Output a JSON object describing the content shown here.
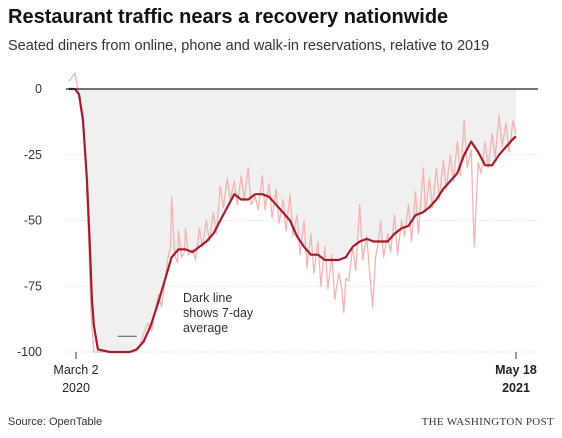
{
  "header": {
    "title": "Restaurant traffic nears a recovery nationwide",
    "subtitle": "Seated diners from online, phone and walk-in reservations, relative to 2019"
  },
  "footer": {
    "source": "Source: OpenTable",
    "credit": "THE WASHINGTON POST"
  },
  "colors": {
    "avg_line": "#a01e2c",
    "daily_line": "#f4b3b3",
    "fill": "#f0f0f0",
    "zero_line": "#222222",
    "grid": "#dddddd"
  },
  "chart_data": {
    "type": "line",
    "title": "Restaurant traffic nears a recovery nationwide",
    "subtitle": "Seated diners from online, phone and walk-in reservations, relative to 2019",
    "xlabel": "",
    "ylabel": "",
    "xlim": [
      "2020-03-02",
      "2021-05-18"
    ],
    "ylim": [
      -100,
      0
    ],
    "grid": true,
    "y_ticks": [
      "0",
      "-25",
      "-50",
      "-75",
      "-100"
    ],
    "x_ticks": [
      {
        "month": "March 2",
        "year": "2020",
        "date": "2020-03-02",
        "bold": false
      },
      {
        "month": "May 18",
        "year": "2021",
        "date": "2021-05-18",
        "bold": true
      }
    ],
    "annotation": {
      "lines": [
        "Dark line",
        "shows 7-day",
        "average"
      ],
      "date": "2020-05-05",
      "value": -94
    },
    "series": [
      {
        "style": "daily",
        "x": [
          "2020-02-24",
          "2020-03-01",
          "2020-03-05",
          "2020-03-09",
          "2020-03-12",
          "2020-03-15",
          "2020-03-17",
          "2020-03-20",
          "2020-03-25",
          "2020-04-01",
          "2020-04-10",
          "2020-04-20",
          "2020-04-30",
          "2020-05-03",
          "2020-05-06",
          "2020-05-09",
          "2020-05-13",
          "2020-05-17",
          "2020-05-20",
          "2020-05-24",
          "2020-05-27",
          "2020-05-30",
          "2020-06-02",
          "2020-06-05",
          "2020-06-06",
          "2020-06-09",
          "2020-06-12",
          "2020-06-13",
          "2020-06-16",
          "2020-06-19",
          "2020-06-20",
          "2020-06-23",
          "2020-06-27",
          "2020-06-30",
          "2020-07-04",
          "2020-07-07",
          "2020-07-11",
          "2020-07-14",
          "2020-07-18",
          "2020-07-21",
          "2020-07-25",
          "2020-07-28",
          "2020-08-01",
          "2020-08-04",
          "2020-08-08",
          "2020-08-11",
          "2020-08-15",
          "2020-08-18",
          "2020-08-22",
          "2020-08-25",
          "2020-08-29",
          "2020-09-01",
          "2020-09-05",
          "2020-09-08",
          "2020-09-12",
          "2020-09-15",
          "2020-09-19",
          "2020-09-22",
          "2020-09-26",
          "2020-09-29",
          "2020-10-03",
          "2020-10-06",
          "2020-10-10",
          "2020-10-13",
          "2020-10-17",
          "2020-10-20",
          "2020-10-24",
          "2020-10-27",
          "2020-10-31",
          "2020-11-03",
          "2020-11-07",
          "2020-11-10",
          "2020-11-14",
          "2020-11-17",
          "2020-11-21",
          "2020-11-24",
          "2020-11-26",
          "2020-11-28",
          "2020-12-01",
          "2020-12-05",
          "2020-12-08",
          "2020-12-12",
          "2020-12-15",
          "2020-12-19",
          "2020-12-22",
          "2020-12-25",
          "2020-12-28",
          "2020-12-31",
          "2021-01-02",
          "2021-01-05",
          "2021-01-09",
          "2021-01-12",
          "2021-01-16",
          "2021-01-19",
          "2021-01-23",
          "2021-01-26",
          "2021-01-30",
          "2021-02-02",
          "2021-02-06",
          "2021-02-09",
          "2021-02-13",
          "2021-02-14",
          "2021-02-16",
          "2021-02-20",
          "2021-02-23",
          "2021-02-27",
          "2021-03-02",
          "2021-03-06",
          "2021-03-09",
          "2021-03-13",
          "2021-03-16",
          "2021-03-20",
          "2021-03-23",
          "2021-03-27",
          "2021-03-30",
          "2021-04-03",
          "2021-04-06",
          "2021-04-10",
          "2021-04-13",
          "2021-04-17",
          "2021-04-20",
          "2021-04-24",
          "2021-04-27",
          "2021-05-01",
          "2021-05-04",
          "2021-05-08",
          "2021-05-11",
          "2021-05-15",
          "2021-05-18"
        ],
        "y": [
          3,
          6,
          -3,
          -10,
          -30,
          -60,
          -85,
          -100,
          -100,
          -100,
          -100,
          -100,
          -100,
          -99,
          -97,
          -93,
          -89,
          -92,
          -85,
          -78,
          -83,
          -74,
          -65,
          -60,
          -41,
          -63,
          -66,
          -54,
          -64,
          -62,
          -53,
          -63,
          -61,
          -65,
          -53,
          -60,
          -50,
          -58,
          -47,
          -55,
          -37,
          -45,
          -34,
          -42,
          -35,
          -44,
          -33,
          -42,
          -30,
          -44,
          -41,
          -46,
          -33,
          -46,
          -36,
          -49,
          -38,
          -51,
          -42,
          -54,
          -40,
          -56,
          -48,
          -63,
          -50,
          -68,
          -55,
          -70,
          -58,
          -75,
          -60,
          -76,
          -63,
          -80,
          -70,
          -76,
          -85,
          -72,
          -73,
          -60,
          -69,
          -44,
          -65,
          -56,
          -70,
          -83,
          -64,
          -58,
          -50,
          -64,
          -55,
          -62,
          -48,
          -63,
          -50,
          -56,
          -44,
          -58,
          -39,
          -55,
          -35,
          -30,
          -47,
          -34,
          -45,
          -30,
          -42,
          -27,
          -38,
          -25,
          -35,
          -20,
          -33,
          -12,
          -30,
          -23,
          -60,
          -28,
          -32,
          -20,
          -30,
          -17,
          -26,
          -10,
          -22,
          -13,
          -24,
          -12,
          -17
        ]
      },
      {
        "style": "average",
        "x": [
          "2020-02-24",
          "2020-03-01",
          "2020-03-05",
          "2020-03-09",
          "2020-03-13",
          "2020-03-16",
          "2020-03-18",
          "2020-03-20",
          "2020-03-24",
          "2020-04-05",
          "2020-04-15",
          "2020-04-25",
          "2020-05-02",
          "2020-05-09",
          "2020-05-16",
          "2020-05-23",
          "2020-05-30",
          "2020-06-06",
          "2020-06-13",
          "2020-06-20",
          "2020-06-27",
          "2020-07-04",
          "2020-07-11",
          "2020-07-18",
          "2020-07-25",
          "2020-08-01",
          "2020-08-08",
          "2020-08-15",
          "2020-08-22",
          "2020-08-29",
          "2020-09-05",
          "2020-09-12",
          "2020-09-19",
          "2020-09-26",
          "2020-10-03",
          "2020-10-10",
          "2020-10-17",
          "2020-10-24",
          "2020-10-31",
          "2020-11-07",
          "2020-11-14",
          "2020-11-21",
          "2020-11-28",
          "2020-12-05",
          "2020-12-12",
          "2020-12-19",
          "2020-12-26",
          "2021-01-02",
          "2021-01-09",
          "2021-01-16",
          "2021-01-23",
          "2021-01-30",
          "2021-02-06",
          "2021-02-13",
          "2021-02-20",
          "2021-02-27",
          "2021-03-06",
          "2021-03-13",
          "2021-03-20",
          "2021-03-27",
          "2021-04-03",
          "2021-04-10",
          "2021-04-17",
          "2021-04-24",
          "2021-05-01",
          "2021-05-08",
          "2021-05-15",
          "2021-05-18"
        ],
        "y": [
          0,
          0,
          -2,
          -12,
          -35,
          -60,
          -80,
          -90,
          -99,
          -100,
          -100,
          -100,
          -99,
          -96,
          -90,
          -82,
          -73,
          -64,
          -61,
          -61,
          -62,
          -60,
          -58,
          -55,
          -50,
          -45,
          -40,
          -42,
          -42,
          -40,
          -40,
          -41,
          -44,
          -47,
          -50,
          -56,
          -60,
          -63,
          -63,
          -65,
          -65,
          -65,
          -64,
          -60,
          -58,
          -57,
          -58,
          -58,
          -58,
          -55,
          -53,
          -52,
          -48,
          -47,
          -45,
          -42,
          -38,
          -35,
          -32,
          -25,
          -20,
          -24,
          -29,
          -29,
          -25,
          -22,
          -19,
          -18
        ]
      }
    ]
  }
}
